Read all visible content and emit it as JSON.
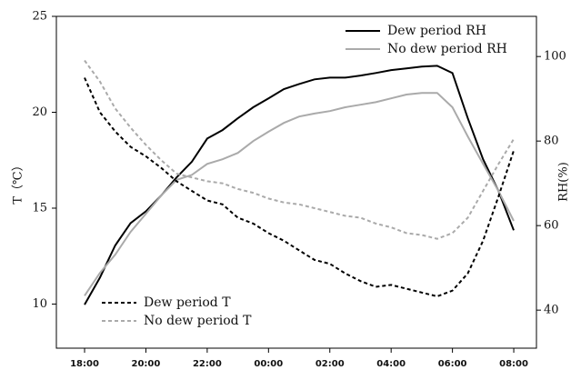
{
  "chart_data": {
    "type": "line",
    "ylabel": "T（℃）",
    "y2label": "RH(%)",
    "x": [
      0,
      0.5,
      1,
      1.5,
      2,
      2.5,
      3,
      3.5,
      4,
      4.5,
      5,
      5.5,
      6,
      6.5,
      7,
      7.5,
      8,
      8.5,
      9,
      9.5,
      10,
      10.5,
      11,
      11.5,
      12,
      12.5,
      13,
      13.5,
      14
    ],
    "xlim": [
      -0.92,
      14.74
    ],
    "xticks": [
      {
        "value": 0,
        "label": "18:00"
      },
      {
        "value": 2,
        "label": "20:00"
      },
      {
        "value": 4,
        "label": "22:00"
      },
      {
        "value": 6,
        "label": "00:00"
      },
      {
        "value": 8,
        "label": "02:00"
      },
      {
        "value": 10,
        "label": "04:00"
      },
      {
        "value": 12,
        "label": "06:00"
      },
      {
        "value": 14,
        "label": "08:00"
      }
    ],
    "ylim": [
      7.7,
      25
    ],
    "yticks": [
      10,
      15,
      20,
      25
    ],
    "y2lim": [
      31,
      109.5
    ],
    "y2ticks": [
      40,
      60,
      80,
      100
    ],
    "legend_y": "lower left",
    "legend_y2": "upper right",
    "series": [
      {
        "name": "Dew period RH",
        "color": "#000000",
        "dashed": false,
        "axis": "y2",
        "values": [
          41.3,
          47.7,
          55.3,
          60.6,
          63.4,
          67.1,
          71.4,
          75.1,
          80.6,
          82.6,
          85.4,
          88,
          90.1,
          92.3,
          93.5,
          94.6,
          95,
          95,
          95.5,
          96.1,
          96.8,
          97.2,
          97.6,
          97.8,
          96.1,
          85.4,
          75.7,
          68.2,
          58.9
        ]
      },
      {
        "name": "No dew period RH",
        "color": "#aaaaaa",
        "dashed": false,
        "axis": "y2",
        "values": [
          43.4,
          48.8,
          53.1,
          58.5,
          62.8,
          67.1,
          70.8,
          72,
          74.6,
          75.7,
          77.2,
          80,
          82.2,
          84.3,
          85.8,
          86.5,
          87.1,
          88,
          88.6,
          89.2,
          90.1,
          91,
          91.4,
          91.4,
          88,
          81.1,
          74.6,
          68.2,
          61.1
        ]
      },
      {
        "name": "Dew period T",
        "color": "#000000",
        "dashed": true,
        "axis": "y",
        "values": [
          21.8,
          20,
          19,
          18.2,
          17.7,
          17.1,
          16.4,
          15.9,
          15.4,
          15.2,
          14.5,
          14.2,
          13.7,
          13.3,
          12.8,
          12.3,
          12.1,
          11.6,
          11.2,
          10.9,
          11,
          10.8,
          10.6,
          10.4,
          10.7,
          11.6,
          13.3,
          15.6,
          18
        ]
      },
      {
        "name": "No dew period T",
        "color": "#aaaaaa",
        "dashed": true,
        "axis": "y",
        "values": [
          22.7,
          21.6,
          20.2,
          19.2,
          18.3,
          17.5,
          16.8,
          16.6,
          16.4,
          16.3,
          16,
          15.8,
          15.5,
          15.3,
          15.2,
          15,
          14.8,
          14.6,
          14.5,
          14.2,
          14,
          13.7,
          13.6,
          13.4,
          13.7,
          14.5,
          15.9,
          17.3,
          18.6
        ]
      }
    ]
  }
}
